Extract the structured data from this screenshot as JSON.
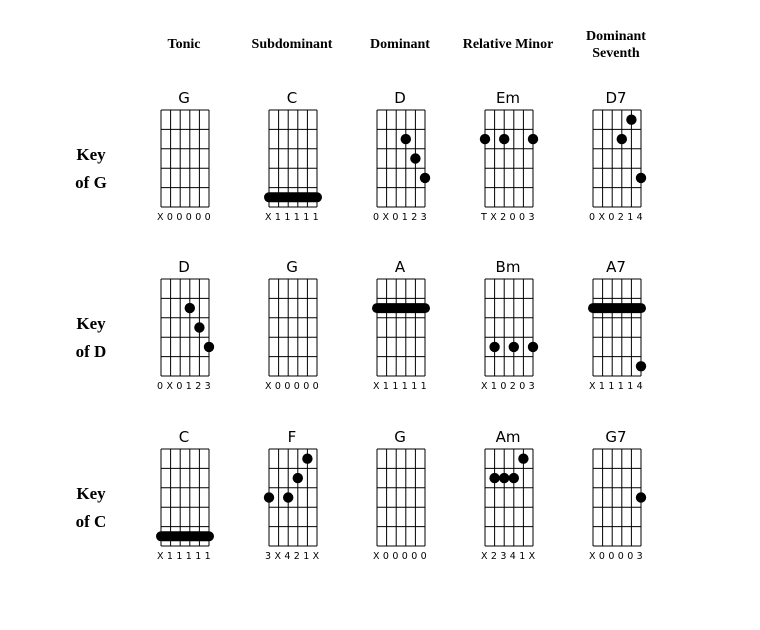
{
  "headers": [
    [
      "Tonic"
    ],
    [
      "Subdominant"
    ],
    [
      "Dominant"
    ],
    [
      "Relative Minor"
    ],
    [
      "Dominant",
      "Seventh"
    ]
  ],
  "rows": [
    {
      "label": [
        "Key",
        "of G"
      ],
      "chords": [
        {
          "name": "G",
          "fingering": "X00000",
          "dots": [],
          "barres": []
        },
        {
          "name": "C",
          "fingering": "X11111",
          "dots": [],
          "barres": [
            [
              0,
              5,
              5
            ]
          ]
        },
        {
          "name": "D",
          "fingering": "0X0123",
          "dots": [
            [
              3,
              2
            ],
            [
              4,
              3
            ],
            [
              5,
              4
            ]
          ],
          "barres": []
        },
        {
          "name": "Em",
          "fingering": "TX2003",
          "dots": [
            [
              0,
              2
            ],
            [
              2,
              2
            ],
            [
              5,
              2
            ]
          ],
          "barres": []
        },
        {
          "name": "D7",
          "fingering": "0X0214",
          "dots": [
            [
              4,
              1
            ],
            [
              3,
              2
            ],
            [
              5,
              4
            ]
          ],
          "barres": []
        }
      ]
    },
    {
      "label": [
        "Key",
        "of D"
      ],
      "chords": [
        {
          "name": "D",
          "fingering": "0X0123",
          "dots": [
            [
              3,
              2
            ],
            [
              4,
              3
            ],
            [
              5,
              4
            ]
          ],
          "barres": []
        },
        {
          "name": "G",
          "fingering": "X00000",
          "dots": [],
          "barres": []
        },
        {
          "name": "A",
          "fingering": "X11111",
          "dots": [],
          "barres": [
            [
              0,
              5,
              2
            ]
          ]
        },
        {
          "name": "Bm",
          "fingering": "X10203",
          "dots": [
            [
              1,
              4
            ],
            [
              3,
              4
            ],
            [
              5,
              4
            ]
          ],
          "barres": []
        },
        {
          "name": "A7",
          "fingering": "X11114",
          "dots": [
            [
              5,
              5
            ]
          ],
          "barres": [
            [
              0,
              5,
              2
            ]
          ]
        }
      ]
    },
    {
      "label": [
        "Key",
        "of C"
      ],
      "chords": [
        {
          "name": "C",
          "fingering": "X11111",
          "dots": [],
          "barres": [
            [
              0,
              5,
              5
            ]
          ]
        },
        {
          "name": "F",
          "fingering": "3X421X",
          "dots": [
            [
              4,
              1
            ],
            [
              3,
              2
            ],
            [
              0,
              3
            ],
            [
              2,
              3
            ]
          ],
          "barres": []
        },
        {
          "name": "G",
          "fingering": "X00000",
          "dots": [],
          "barres": []
        },
        {
          "name": "Am",
          "fingering": "X2341X",
          "dots": [
            [
              4,
              1
            ],
            [
              1,
              2
            ],
            [
              2,
              2
            ],
            [
              3,
              2
            ]
          ],
          "barres": []
        },
        {
          "name": "G7",
          "fingering": "X00003",
          "dots": [
            [
              5,
              3
            ]
          ],
          "barres": []
        }
      ]
    }
  ]
}
